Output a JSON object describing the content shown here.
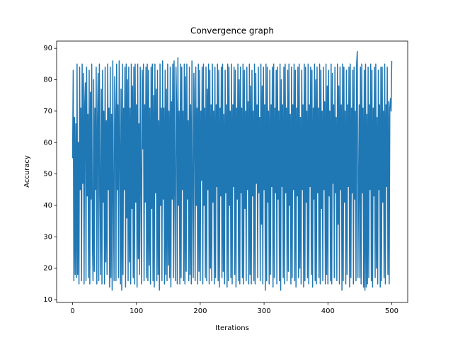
{
  "chart_data": {
    "type": "line",
    "title": "Convergence graph",
    "x_label": "Iterations",
    "y_label": "Accuracy",
    "color": "#1f77b4",
    "xlim": [
      -25,
      525
    ],
    "ylim": [
      9.1,
      92.3
    ],
    "xticks": [
      0,
      100,
      200,
      300,
      400,
      500
    ],
    "yticks": [
      10,
      20,
      30,
      40,
      50,
      60,
      70,
      80,
      90
    ],
    "x": [
      0,
      1,
      2,
      3,
      4,
      5,
      6,
      7,
      8,
      9,
      10,
      11,
      12,
      13,
      14,
      15,
      16,
      17,
      18,
      19,
      20,
      21,
      22,
      23,
      24,
      25,
      26,
      27,
      28,
      29,
      30,
      31,
      32,
      33,
      34,
      35,
      36,
      37,
      38,
      39,
      40,
      41,
      42,
      43,
      44,
      45,
      46,
      47,
      48,
      49,
      50,
      51,
      52,
      53,
      54,
      55,
      56,
      57,
      58,
      59,
      60,
      61,
      62,
      63,
      64,
      65,
      66,
      67,
      68,
      69,
      70,
      71,
      72,
      73,
      74,
      75,
      76,
      77,
      78,
      79,
      80,
      81,
      82,
      83,
      84,
      85,
      86,
      87,
      88,
      89,
      90,
      91,
      92,
      93,
      94,
      95,
      96,
      97,
      98,
      99,
      100,
      101,
      102,
      103,
      104,
      105,
      106,
      107,
      108,
      109,
      110,
      111,
      112,
      113,
      114,
      115,
      116,
      117,
      118,
      119,
      120,
      121,
      122,
      123,
      124,
      125,
      126,
      127,
      128,
      129,
      130,
      131,
      132,
      133,
      134,
      135,
      136,
      137,
      138,
      139,
      140,
      141,
      142,
      143,
      144,
      145,
      146,
      147,
      148,
      149,
      150,
      151,
      152,
      153,
      154,
      155,
      156,
      157,
      158,
      159,
      160,
      161,
      162,
      163,
      164,
      165,
      166,
      167,
      168,
      169,
      170,
      171,
      172,
      173,
      174,
      175,
      176,
      177,
      178,
      179,
      180,
      181,
      182,
      183,
      184,
      185,
      186,
      187,
      188,
      189,
      190,
      191,
      192,
      193,
      194,
      195,
      196,
      197,
      198,
      199,
      200,
      201,
      202,
      203,
      204,
      205,
      206,
      207,
      208,
      209,
      210,
      211,
      212,
      213,
      214,
      215,
      216,
      217,
      218,
      219,
      220,
      221,
      222,
      223,
      224,
      225,
      226,
      227,
      228,
      229,
      230,
      231,
      232,
      233,
      234,
      235,
      236,
      237,
      238,
      239,
      240,
      241,
      242,
      243,
      244,
      245,
      246,
      247,
      248,
      249,
      250,
      251,
      252,
      253,
      254,
      255,
      256,
      257,
      258,
      259,
      260,
      261,
      262,
      263,
      264,
      265,
      266,
      267,
      268,
      269,
      270,
      271,
      272,
      273,
      274,
      275,
      276,
      277,
      278,
      279,
      280,
      281,
      282,
      283,
      284,
      285,
      286,
      287,
      288,
      289,
      290,
      291,
      292,
      293,
      294,
      295,
      296,
      297,
      298,
      299,
      300,
      301,
      302,
      303,
      304,
      305,
      306,
      307,
      308,
      309,
      310,
      311,
      312,
      313,
      314,
      315,
      316,
      317,
      318,
      319,
      320,
      321,
      322,
      323,
      324,
      325,
      326,
      327,
      328,
      329,
      330,
      331,
      332,
      333,
      334,
      335,
      336,
      337,
      338,
      339,
      340,
      341,
      342,
      343,
      344,
      345,
      346,
      347,
      348,
      349,
      350,
      351,
      352,
      353,
      354,
      355,
      356,
      357,
      358,
      359,
      360,
      361,
      362,
      363,
      364,
      365,
      366,
      367,
      368,
      369,
      370,
      371,
      372,
      373,
      374,
      375,
      376,
      377,
      378,
      379,
      380,
      381,
      382,
      383,
      384,
      385,
      386,
      387,
      388,
      389,
      390,
      391,
      392,
      393,
      394,
      395,
      396,
      397,
      398,
      399,
      400,
      401,
      402,
      403,
      404,
      405,
      406,
      407,
      408,
      409,
      410,
      411,
      412,
      413,
      414,
      415,
      416,
      417,
      418,
      419,
      420,
      421,
      422,
      423,
      424,
      425,
      426,
      427,
      428,
      429,
      430,
      431,
      432,
      433,
      434,
      435,
      436,
      437,
      438,
      439,
      440,
      441,
      442,
      443,
      444,
      445,
      446,
      447,
      448,
      449,
      450,
      451,
      452,
      453,
      454,
      455,
      456,
      457,
      458,
      459,
      460,
      461,
      462,
      463,
      464,
      465,
      466,
      467,
      468,
      469,
      470,
      471,
      472,
      473,
      474,
      475,
      476,
      477,
      478,
      479,
      480,
      481,
      482,
      483,
      484,
      485,
      486,
      487,
      488,
      489,
      490,
      491,
      492,
      493,
      494,
      495,
      496,
      497,
      498,
      499,
      500
    ],
    "values": [
      55,
      83,
      16,
      68,
      18,
      66,
      17,
      85,
      18,
      60,
      15,
      84,
      45,
      71,
      16,
      85,
      47,
      82,
      15,
      72,
      79,
      16,
      84,
      43,
      69,
      17,
      83,
      15,
      76,
      42,
      85,
      30,
      16,
      80,
      19,
      71,
      45,
      84,
      15,
      67,
      82,
      16,
      85,
      47,
      18,
      77,
      15,
      83,
      41,
      70,
      15,
      84,
      22,
      67,
      18,
      85,
      45,
      71,
      14,
      84,
      17,
      69,
      13,
      86,
      43,
      16,
      81,
      70,
      16,
      85,
      45,
      72,
      17,
      86,
      60,
      15,
      77,
      13,
      85,
      18,
      71,
      45,
      84,
      14,
      85,
      36,
      80,
      16,
      84,
      22,
      71,
      15,
      85,
      39,
      78,
      17,
      84,
      15,
      85,
      41,
      72,
      14,
      85,
      23,
      66,
      18,
      84,
      47,
      15,
      83,
      58,
      85,
      16,
      72,
      41,
      84,
      17,
      85,
      16,
      83,
      21,
      71,
      15,
      84,
      39,
      85,
      16,
      75,
      14,
      85,
      44,
      77,
      16,
      83,
      18,
      67,
      13,
      85,
      40,
      71,
      16,
      86,
      42,
      71,
      15,
      83,
      18,
      77,
      16,
      85,
      21,
      70,
      17,
      84,
      14,
      73,
      42,
      85,
      17,
      86,
      45,
      16,
      84,
      72,
      15,
      87,
      40,
      70,
      15,
      85,
      17,
      84,
      45,
      70,
      16,
      85,
      15,
      81,
      19,
      85,
      42,
      67,
      16,
      84,
      18,
      72,
      15,
      86,
      46,
      17,
      82,
      70,
      16,
      84,
      40,
      71,
      15,
      85,
      19,
      83,
      16,
      70,
      48,
      84,
      15,
      85,
      40,
      71,
      17,
      84,
      16,
      77,
      45,
      85,
      15,
      83,
      20,
      72,
      16,
      85,
      41,
      70,
      15,
      84,
      17,
      72,
      46,
      85,
      16,
      83,
      14,
      71,
      43,
      84,
      17,
      85,
      19,
      69,
      15,
      83,
      44,
      72,
      14,
      85,
      16,
      84,
      40,
      70,
      17,
      85,
      15,
      72,
      46,
      84,
      18,
      83,
      14,
      71,
      42,
      85,
      16,
      80,
      15,
      84,
      44,
      71,
      17,
      85,
      15,
      83,
      39,
      70,
      16,
      84,
      45,
      73,
      15,
      85,
      18,
      78,
      15,
      83,
      43,
      70,
      16,
      85,
      15,
      82,
      47,
      72,
      17,
      84,
      44,
      68,
      16,
      85,
      34,
      78,
      15,
      84,
      45,
      72,
      13,
      85,
      16,
      84,
      41,
      70,
      15,
      83,
      18,
      72,
      46,
      84,
      14,
      85,
      17,
      71,
      44,
      83,
      15,
      84,
      42,
      70,
      16,
      85,
      13,
      80,
      46,
      72,
      17,
      84,
      15,
      85,
      44,
      71,
      16,
      83,
      19,
      85,
      40,
      69,
      15,
      84,
      17,
      72,
      45,
      85,
      16,
      83,
      14,
      71,
      43,
      84,
      17,
      85,
      20,
      68,
      15,
      83,
      45,
      72,
      14,
      85,
      16,
      84,
      41,
      70,
      17,
      85,
      15,
      72,
      46,
      84,
      18,
      83,
      14,
      71,
      42,
      85,
      16,
      80,
      15,
      84,
      44,
      71,
      17,
      85,
      15,
      83,
      39,
      70,
      16,
      84,
      45,
      73,
      15,
      85,
      18,
      78,
      15,
      83,
      43,
      70,
      16,
      85,
      15,
      82,
      47,
      72,
      17,
      84,
      44,
      68,
      16,
      85,
      34,
      78,
      15,
      84,
      45,
      72,
      13,
      85,
      16,
      84,
      41,
      70,
      15,
      83,
      18,
      72,
      46,
      84,
      14,
      85,
      17,
      71,
      44,
      83,
      15,
      84,
      42,
      70,
      16,
      85,
      89,
      17,
      46,
      72,
      17,
      84,
      15,
      85,
      44,
      71,
      14,
      83,
      13,
      85,
      14,
      69,
      15,
      84,
      17,
      72,
      45,
      85,
      16,
      83,
      14,
      71,
      43,
      84,
      17,
      85,
      20,
      68,
      15,
      83,
      45,
      72,
      14,
      84,
      16,
      84,
      41,
      70,
      17,
      85,
      15,
      72,
      46,
      84,
      18,
      73,
      15,
      71,
      74,
      70,
      86
    ]
  }
}
